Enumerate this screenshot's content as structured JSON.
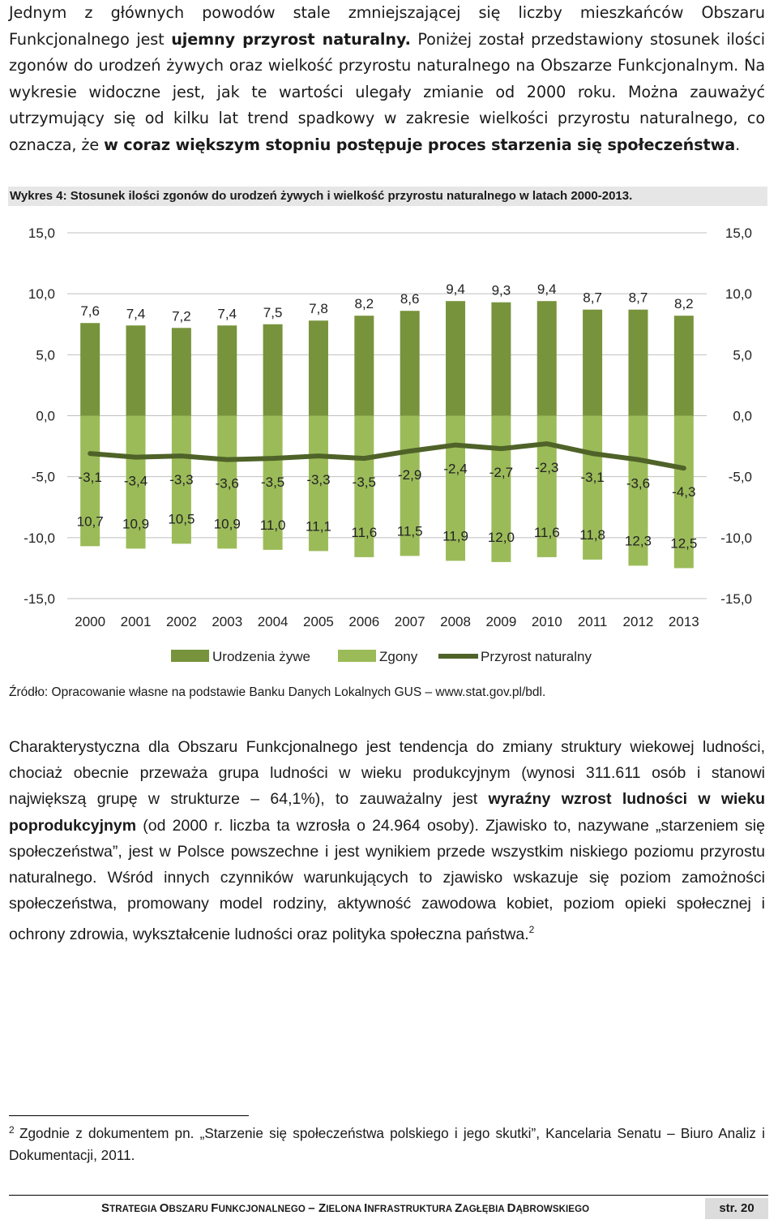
{
  "intro": {
    "t1": "Jednym z głównych powodów stale zmniejszającej się liczby mieszkańców Obszaru Funkcjonalnego jest ",
    "b1": "ujemny przyrost naturalny.",
    "t2": " Poniżej został przedstawiony stosunek ilości zgonów do urodzeń żywych oraz wielkość przyrostu naturalnego na Obszarze Funkcjonalnym. Na wykresie widoczne jest, jak te wartości ulegały zmianie od 2000 roku. Można zauważyć utrzymujący się od kilku lat trend spadkowy w zakresie wielkości przyrostu naturalnego, co oznacza, że ",
    "b2": "w coraz większym stopniu postępuje proces starzenia się społeczeństwa",
    "t3": "."
  },
  "caption": "Wykres 4: Stosunek ilości zgonów do urodzeń żywych i wielkość przyrostu naturalnego w latach 2000-2013.",
  "chart_data": {
    "type": "bar",
    "categories": [
      "2000",
      "2001",
      "2002",
      "2003",
      "2004",
      "2005",
      "2006",
      "2007",
      "2008",
      "2009",
      "2010",
      "2011",
      "2012",
      "2013"
    ],
    "series": [
      {
        "name": "Urodzenia żywe",
        "type": "bar",
        "color": "#77933c",
        "values": [
          7.6,
          7.4,
          7.2,
          7.4,
          7.5,
          7.8,
          8.2,
          8.6,
          9.4,
          9.3,
          9.4,
          8.7,
          8.7,
          8.2
        ],
        "labels": [
          "7,6",
          "7,4",
          "7,2",
          "7,4",
          "7,5",
          "7,8",
          "8,2",
          "8,6",
          "9,4",
          "9,3",
          "9,4",
          "8,7",
          "8,7",
          "8,2"
        ]
      },
      {
        "name": "Zgony",
        "type": "bar",
        "color": "#9bbb59",
        "values": [
          -10.7,
          -10.9,
          -10.5,
          -10.9,
          -11.0,
          -11.1,
          -11.6,
          -11.5,
          -11.9,
          -12.0,
          -11.6,
          -11.8,
          -12.3,
          -12.5
        ],
        "labels": [
          "10,7",
          "10,9",
          "10,5",
          "10,9",
          "11,0",
          "11,1",
          "11,6",
          "11,5",
          "11,9",
          "12,0",
          "11,6",
          "11,8",
          "12,3",
          "12,5"
        ]
      },
      {
        "name": "Przyrost naturalny",
        "type": "line",
        "color": "#4f6228",
        "values": [
          -3.1,
          -3.4,
          -3.3,
          -3.6,
          -3.5,
          -3.3,
          -3.5,
          -2.9,
          -2.4,
          -2.7,
          -2.3,
          -3.1,
          -3.6,
          -4.3
        ],
        "labels": [
          "-3,1",
          "-3,4",
          "-3,3",
          "-3,6",
          "-3,5",
          "-3,3",
          "-3,5",
          "-2,9",
          "-2,4",
          "-2,7",
          "-2,3",
          "-3,1",
          "-3,6",
          "-4,3"
        ]
      }
    ],
    "yticks": [
      "15,0",
      "10,0",
      "5,0",
      "0,0",
      "-5,0",
      "-10,0",
      "-15,0"
    ],
    "ylim": [
      -15,
      15
    ],
    "grid": true,
    "legend": "bottom"
  },
  "source": "Źródło: Opracowanie własne na podstawie Banku Danych Lokalnych GUS – www.stat.gov.pl/bdl.",
  "body": {
    "t1": "Charakterystyczna dla Obszaru Funkcjonalnego jest tendencja do zmiany struktury wiekowej ludności, chociaż obecnie przeważa grupa ludności w wieku produkcyjnym (wynosi 311.611 osób i stanowi największą grupę w strukturze – 64,1%), to zauważalny jest ",
    "b1": "wyraźny wzrost ludności w wieku poprodukcyjnym",
    "t2": " (od 2000 r. liczba ta wzrosła o 24.964 osoby). Zjawisko to, nazywane „starzeniem się społeczeństwa”, jest w Polsce powszechne i jest wynikiem przede wszystkim niskiego poziomu przyrostu naturalnego. Wśród innych czynników warunkujących to zjawisko wskazuje się poziom zamożności społeczeństwa, promowany model rodziny, aktywność zawodowa kobiet, poziom opieki społecznej i ochrony zdrowia, wykształcenie ludności oraz polityka społeczna państwa.",
    "footnote_ref": "2"
  },
  "footnote": {
    "num": "2",
    "text": "Zgodnie z dokumentem pn. „Starzenie się społeczeństwa polskiego i jego skutki”, Kancelaria Senatu – Biuro Analiz i Dokumentacji, 2011."
  },
  "footer": {
    "s_cap": "S",
    "s_rest": "TRATEGIA ",
    "o_cap": "O",
    "o_rest": "BSZARU ",
    "f_cap": "F",
    "f_rest": "UNKCJONALNEGO ",
    "dash": "– ",
    "z_cap": "Z",
    "z_rest": "IELONA ",
    "i_cap": "I",
    "i_rest": "NFRASTRUKTURA ",
    "zg_cap": "Z",
    "zg_rest": "AGŁĘBIA ",
    "d_cap": "D",
    "d_rest": "ĄBROWSKIEGO",
    "page": "str. 20"
  }
}
